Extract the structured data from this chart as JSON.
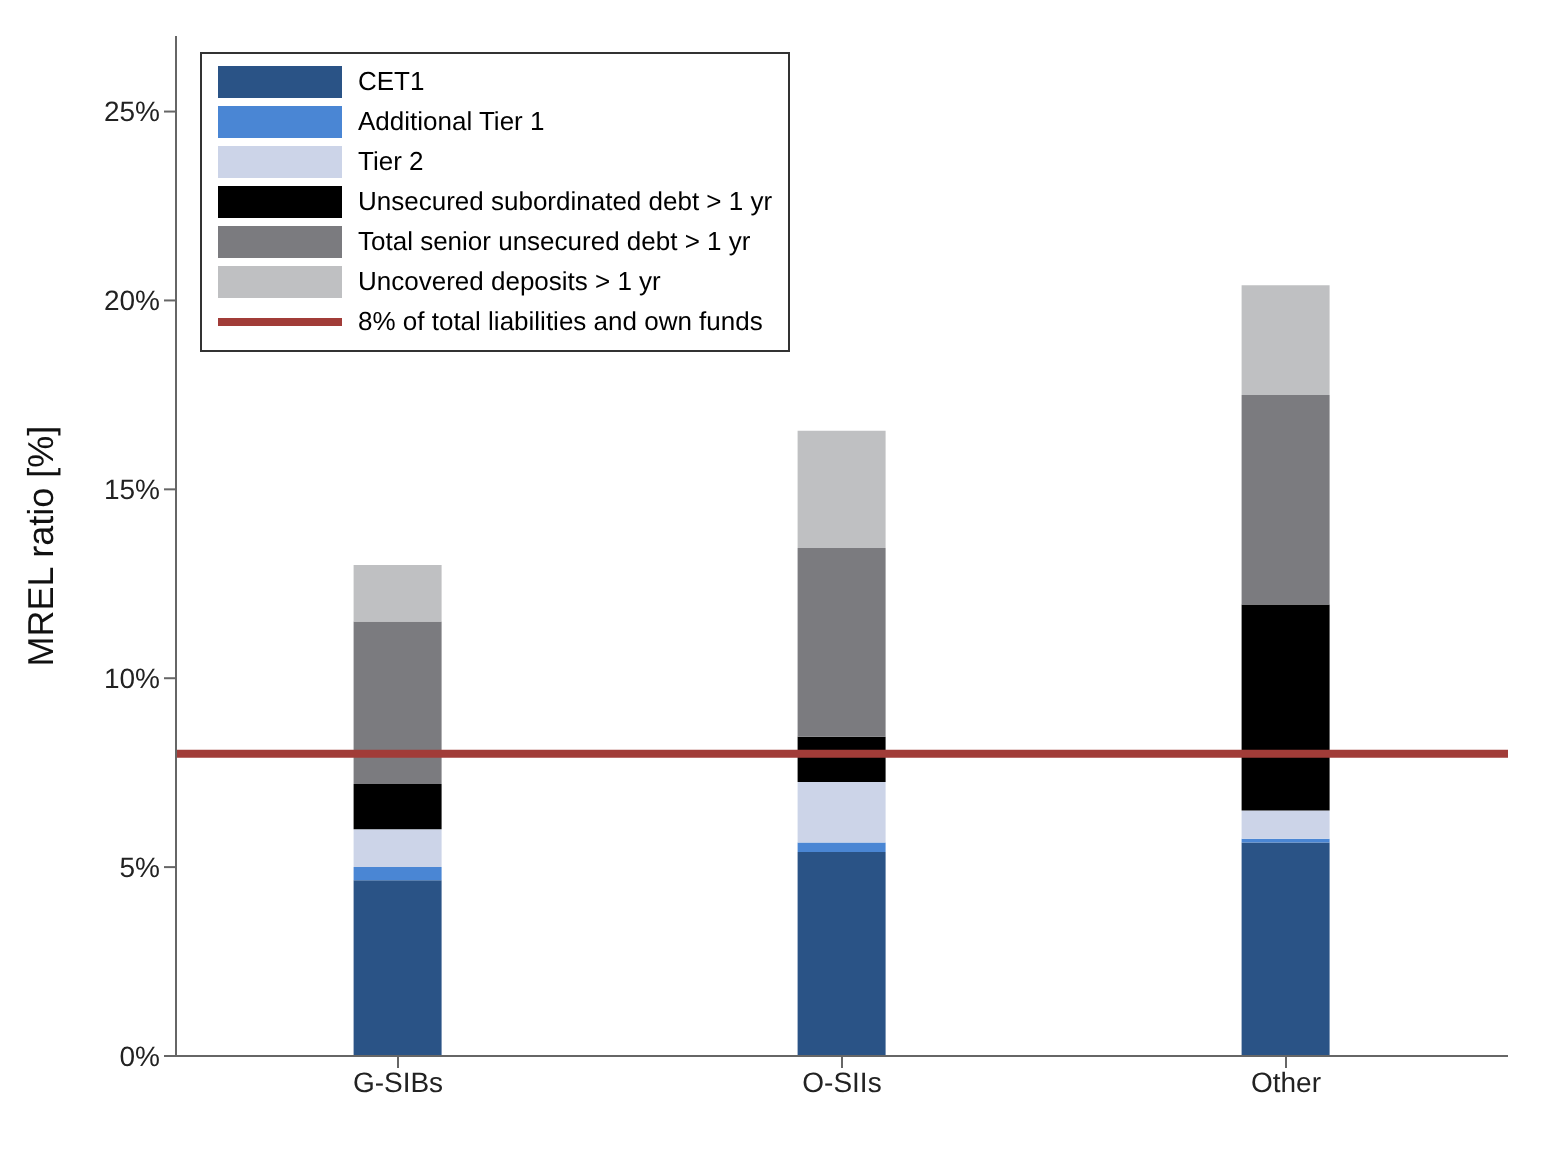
{
  "chart_data": {
    "type": "bar",
    "stacked": true,
    "ylabel": "MREL ratio [%]",
    "categories": [
      "G-SIBs",
      "O-SIIs",
      "Other"
    ],
    "series": [
      {
        "name": "CET1",
        "color": "#2a5386",
        "values": [
          4.65,
          5.4,
          5.65
        ]
      },
      {
        "name": "Additional Tier 1",
        "color": "#4a86d4",
        "values": [
          0.35,
          0.25,
          0.1
        ]
      },
      {
        "name": "Tier 2",
        "color": "#ccd4e8",
        "values": [
          1.0,
          1.6,
          0.75
        ]
      },
      {
        "name": "Unsecured subordinated debt > 1 yr",
        "color": "#000000",
        "values": [
          1.2,
          1.2,
          5.45
        ]
      },
      {
        "name": "Total senior unsecured debt > 1 yr",
        "color": "#7b7b7f",
        "values": [
          4.3,
          5.0,
          5.55
        ]
      },
      {
        "name": "Uncovered deposits > 1 yr",
        "color": "#bfc0c2",
        "values": [
          1.5,
          3.1,
          2.9
        ]
      }
    ],
    "ylim": [
      0,
      27
    ],
    "yticks": [
      {
        "value": 0,
        "label": "0%"
      },
      {
        "value": 5,
        "label": "5%"
      },
      {
        "value": 10,
        "label": "10%"
      },
      {
        "value": 15,
        "label": "15%"
      },
      {
        "value": 20,
        "label": "20%"
      },
      {
        "value": 25,
        "label": "25%"
      }
    ],
    "ref_lines": [
      {
        "axis": "y",
        "value": 8,
        "label": "8% of total liabilities and own funds",
        "color": "#a13c38"
      }
    ],
    "legend": "top left"
  }
}
